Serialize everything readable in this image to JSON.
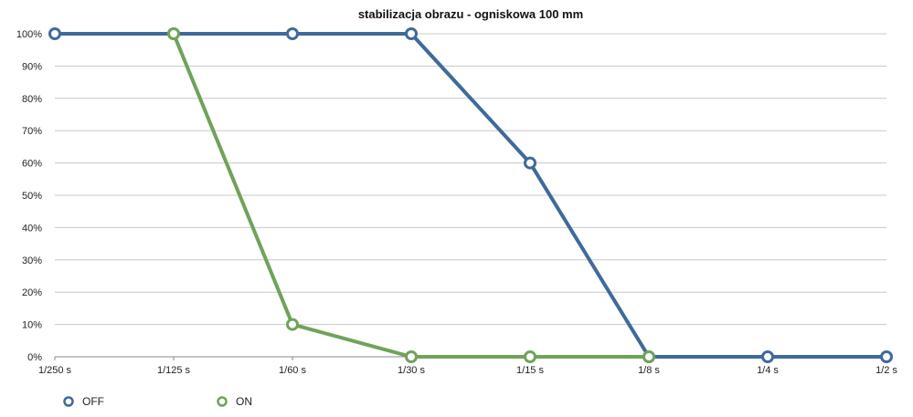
{
  "chart_data": {
    "type": "line",
    "title": "stabilizacja obrazu - ogniskowa 100 mm",
    "xlabel": "",
    "ylabel": "",
    "categories": [
      "1/250 s",
      "1/125 s",
      "1/60 s",
      "1/30 s",
      "1/15 s",
      "1/8 s",
      "1/4 s",
      "1/2 s"
    ],
    "ylim": [
      0,
      100
    ],
    "yticks": [
      "0%",
      "10%",
      "20%",
      "30%",
      "40%",
      "50%",
      "60%",
      "70%",
      "80%",
      "90%",
      "100%"
    ],
    "grid": true,
    "legend_position": "bottom-left",
    "series": [
      {
        "name": "OFF",
        "color": "#3f6a9b",
        "values": [
          100,
          100,
          100,
          100,
          60,
          0,
          0,
          0
        ]
      },
      {
        "name": "ON",
        "color": "#6fa35a",
        "values": [
          null,
          100,
          10,
          0,
          0,
          0,
          null,
          null
        ]
      }
    ]
  }
}
